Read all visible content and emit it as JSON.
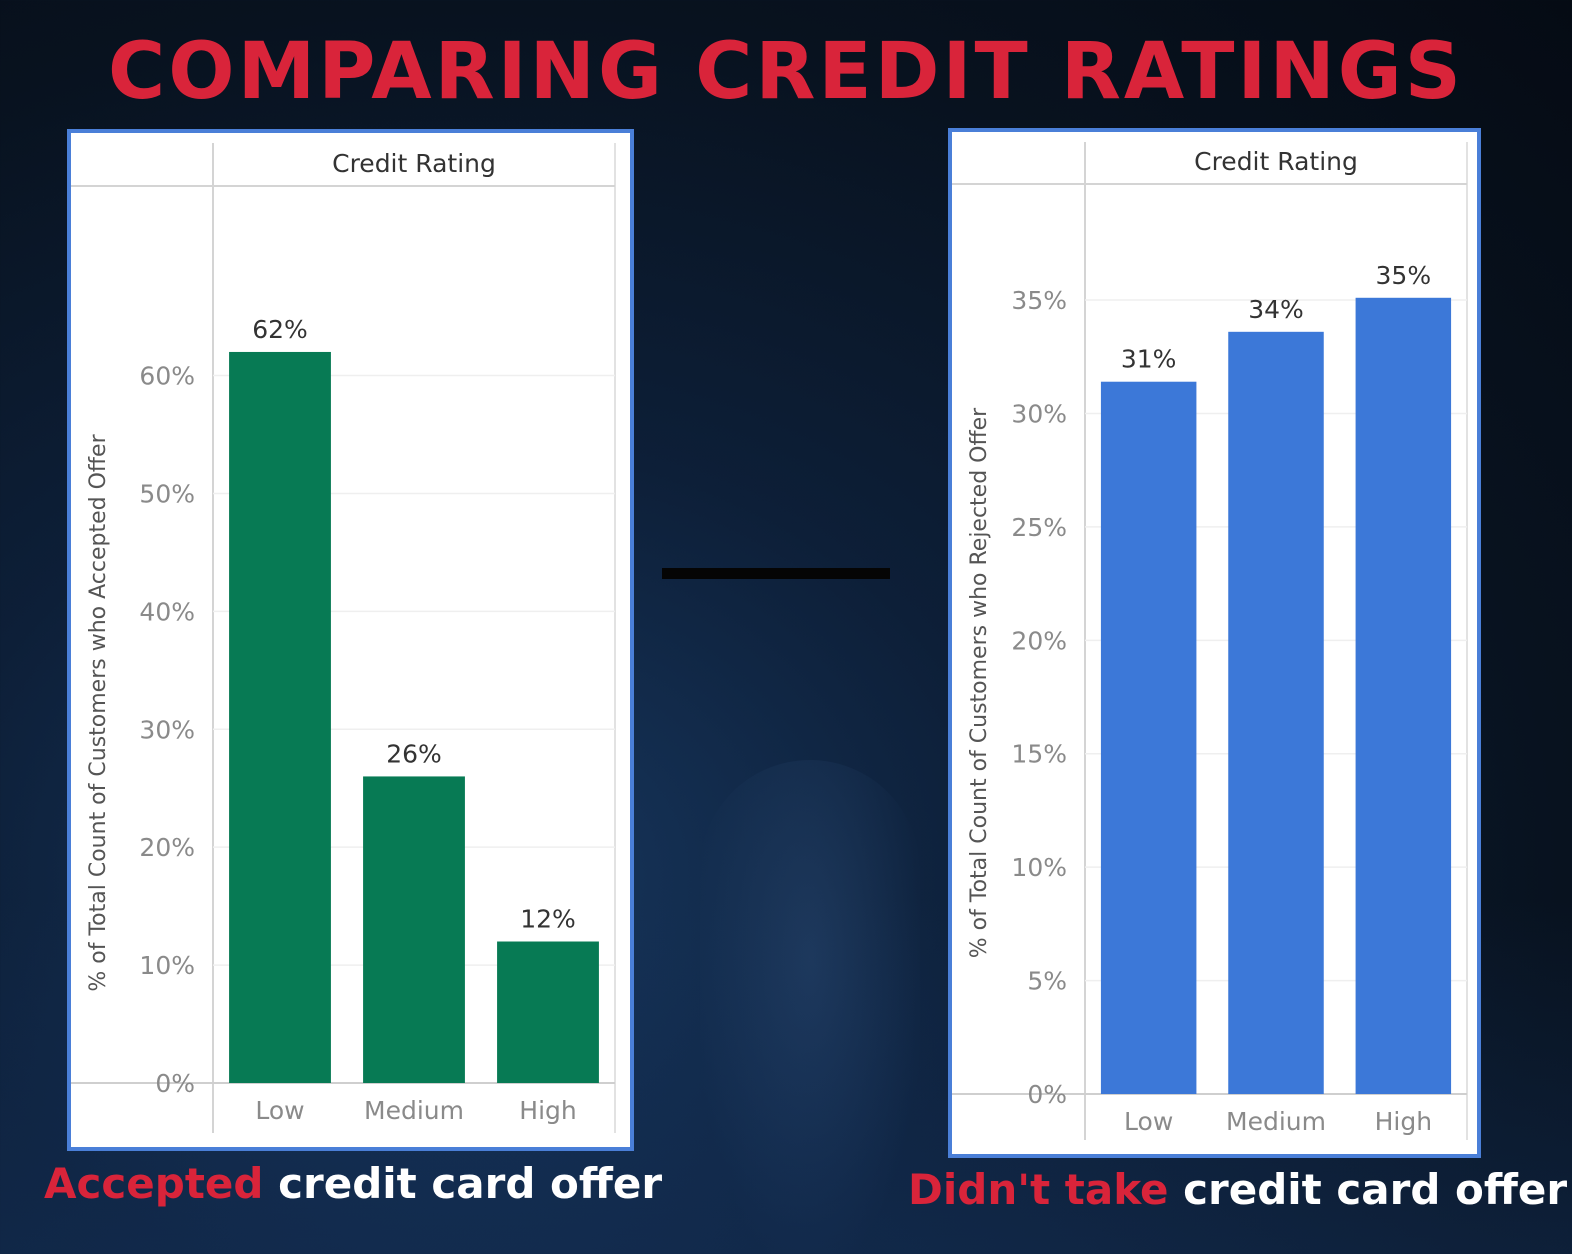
{
  "title": "COMPARING CREDIT RATINGS",
  "colors": {
    "accent_red": "#d9243a",
    "panel_border": "#4a7fd8",
    "accepted_bar": "#077a54",
    "rejected_bar": "#3c78d8"
  },
  "chart_data": [
    {
      "type": "bar",
      "title": "Credit Rating",
      "categories": [
        "Low",
        "Medium",
        "High"
      ],
      "values": [
        62,
        26,
        12
      ],
      "value_labels": [
        "62%",
        "26%",
        "12%"
      ],
      "ylabel": "% of Total Count of Customers who Accepted Offer",
      "ylim": [
        0,
        67
      ],
      "yticks": [
        0,
        10,
        20,
        30,
        40,
        50,
        60
      ],
      "ytick_labels": [
        "0%",
        "10%",
        "20%",
        "30%",
        "40%",
        "50%",
        "60%"
      ],
      "grid": true,
      "color": "#077a54"
    },
    {
      "type": "bar",
      "title": "Credit Rating",
      "categories": [
        "Low",
        "Medium",
        "High"
      ],
      "values": [
        31.4,
        33.6,
        35.1
      ],
      "value_labels": [
        "31%",
        "34%",
        "35%"
      ],
      "ylabel": "% of Total Count of Customers who Rejected Offer",
      "ylim": [
        0,
        38
      ],
      "yticks": [
        0,
        5,
        10,
        15,
        20,
        25,
        30,
        35
      ],
      "ytick_labels": [
        "0%",
        "5%",
        "10%",
        "15%",
        "20%",
        "25%",
        "30%",
        "35%"
      ],
      "grid": true,
      "color": "#3c78d8"
    }
  ],
  "captions": {
    "left_highlight": "Accepted",
    "left_rest": " credit card offer",
    "right_highlight": "Didn't take",
    "right_rest": " credit card offer"
  }
}
